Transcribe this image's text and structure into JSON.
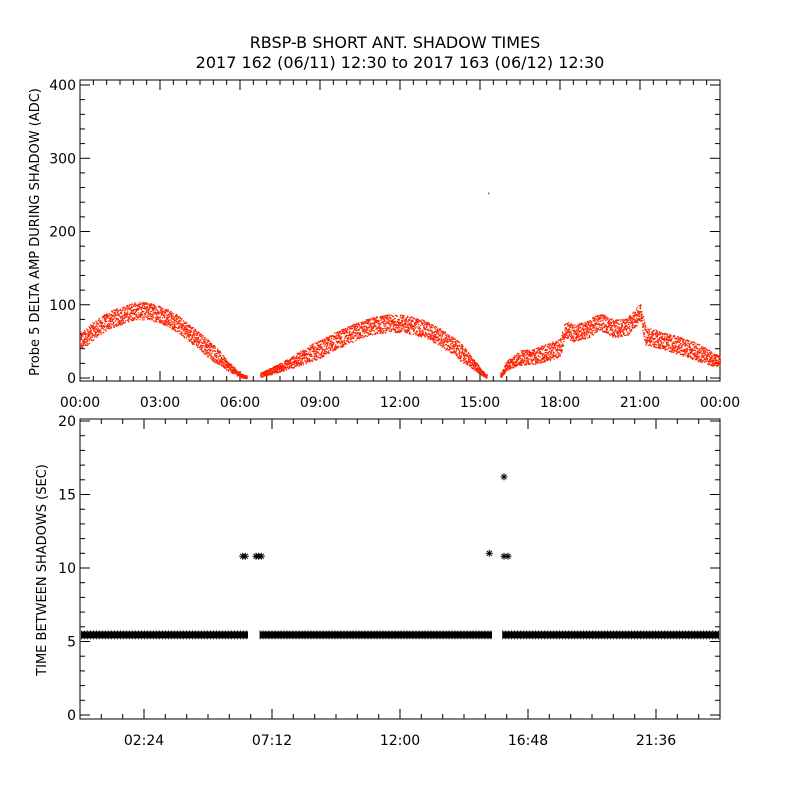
{
  "header": {
    "title": "RBSP-B SHORT ANT. SHADOW TIMES",
    "subtitle": "2017 162 (06/11) 12:30 to 2017 163 (06/12) 12:30"
  },
  "chart_data": [
    {
      "type": "scatter",
      "ylabel": "Probe 5 DELTA AMP DURING SHADOW (ADC)",
      "xlim": [
        0,
        24
      ],
      "ylim": [
        0,
        400
      ],
      "x_tick_labels": [
        "00:00",
        "03:00",
        "06:00",
        "09:00",
        "12:00",
        "15:00",
        "18:00",
        "21:00",
        "00:00"
      ],
      "y_tick_labels": [
        "0",
        "100",
        "200",
        "300",
        "400"
      ],
      "grid": false,
      "color": "#ff2200",
      "series": [
        {
          "band": "continuous",
          "x": [
            0.0,
            0.5,
            1.0,
            1.5,
            2.0,
            2.5,
            3.0,
            3.5,
            4.0,
            4.5,
            5.0,
            5.5,
            6.0,
            6.2,
            6.8,
            7.5,
            8.0,
            8.5,
            9.0,
            9.5,
            10.0,
            10.5,
            11.0,
            11.5,
            12.0,
            12.5,
            13.0,
            13.5,
            14.0,
            14.5,
            15.0,
            15.2,
            15.8,
            16.0,
            16.5,
            17.0,
            17.5,
            18.0,
            18.2,
            18.5,
            19.0,
            19.5,
            20.0,
            20.5,
            21.0,
            21.2,
            21.5,
            22.0,
            22.5,
            23.0,
            23.5,
            24.0
          ],
          "y": [
            50,
            65,
            78,
            85,
            92,
            92,
            88,
            78,
            65,
            50,
            35,
            18,
            4,
            2,
            5,
            15,
            23,
            32,
            40,
            50,
            58,
            66,
            72,
            75,
            75,
            72,
            66,
            56,
            44,
            28,
            10,
            3,
            5,
            18,
            28,
            30,
            35,
            42,
            68,
            62,
            66,
            78,
            68,
            70,
            90,
            58,
            55,
            50,
            44,
            38,
            30,
            22
          ],
          "spread": 12
        }
      ],
      "outliers": [
        {
          "x": 15.3,
          "y": 253
        }
      ]
    },
    {
      "type": "scatter",
      "ylabel": "TIME BETWEEN SHADOWS (SEC)",
      "xlim": [
        0,
        24
      ],
      "ylim": [
        0,
        20
      ],
      "x_tick_labels": [
        "02:24",
        "07:12",
        "12:00",
        "16:48",
        "21:36"
      ],
      "y_tick_labels": [
        "0",
        "5",
        "10",
        "15",
        "20"
      ],
      "grid": false,
      "marker": "*",
      "color": "#000000",
      "baseline": {
        "y": 5.45,
        "segments": [
          [
            0.05,
            6.3
          ],
          [
            6.75,
            15.45
          ],
          [
            15.85,
            23.95
          ]
        ]
      },
      "points": [
        {
          "x": 6.1,
          "y": 10.8
        },
        {
          "x": 6.2,
          "y": 10.8
        },
        {
          "x": 6.6,
          "y": 10.8
        },
        {
          "x": 6.7,
          "y": 10.8
        },
        {
          "x": 6.8,
          "y": 10.8
        },
        {
          "x": 15.35,
          "y": 11.0
        },
        {
          "x": 15.9,
          "y": 16.2
        },
        {
          "x": 15.9,
          "y": 10.8
        },
        {
          "x": 16.05,
          "y": 10.8
        }
      ]
    }
  ]
}
